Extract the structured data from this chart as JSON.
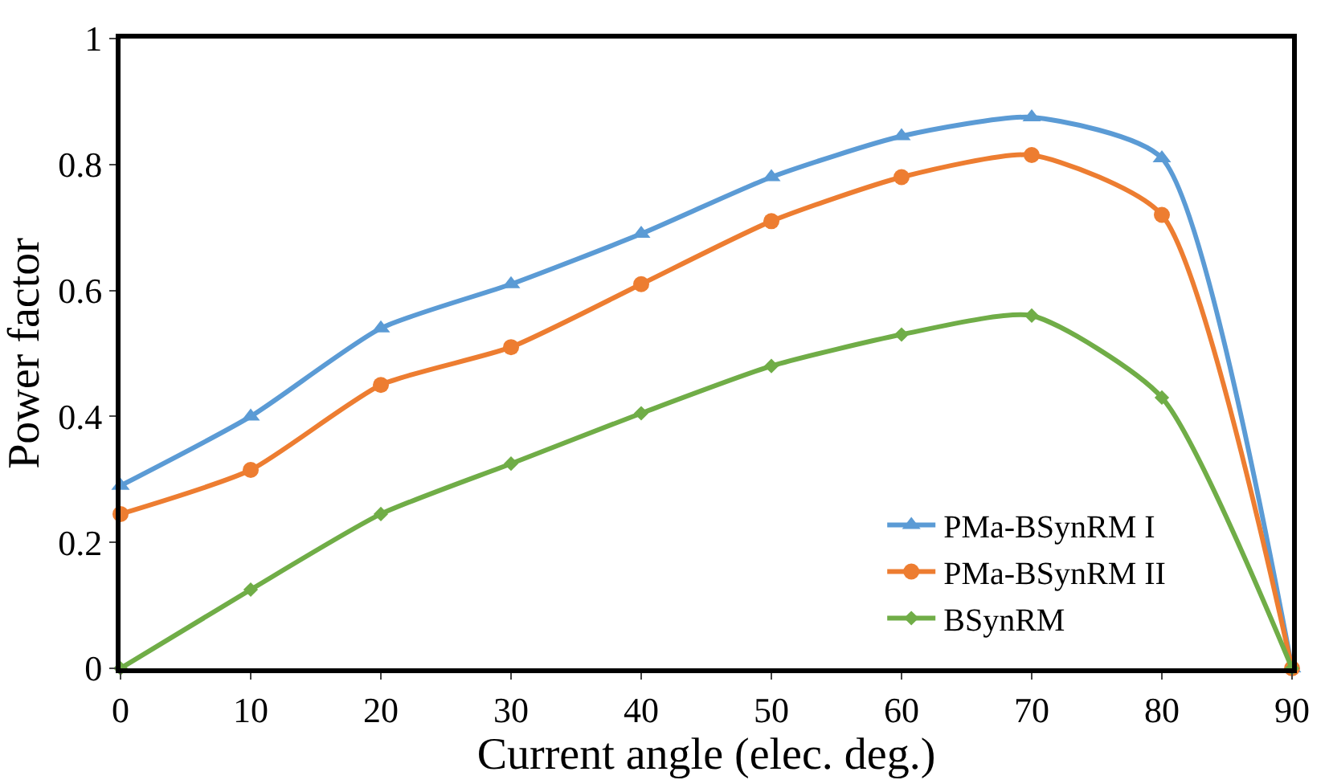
{
  "chart_data": {
    "type": "line",
    "xlabel": "Current angle (elec. deg.)",
    "ylabel": "Power factor",
    "x": [
      0,
      10,
      20,
      30,
      40,
      50,
      60,
      70,
      80,
      90
    ],
    "series": [
      {
        "name": "PMa-BSynRM I",
        "color": "#5b9bd5",
        "marker": "triangle",
        "values": [
          0.29,
          0.4,
          0.54,
          0.61,
          0.69,
          0.78,
          0.845,
          0.875,
          0.81,
          0
        ]
      },
      {
        "name": "PMa-BSynRM II",
        "color": "#ed7d31",
        "marker": "circle",
        "values": [
          0.245,
          0.315,
          0.45,
          0.51,
          0.61,
          0.71,
          0.78,
          0.815,
          0.72,
          0
        ]
      },
      {
        "name": "BSynRM",
        "color": "#70ad47",
        "marker": "diamond",
        "values": [
          0,
          0.125,
          0.245,
          0.325,
          0.405,
          0.48,
          0.53,
          0.56,
          0.43,
          0
        ]
      }
    ],
    "xlim": [
      0,
      90
    ],
    "xticks": [
      0,
      10,
      20,
      30,
      40,
      50,
      60,
      70,
      80,
      90
    ],
    "ylim": [
      0,
      1
    ],
    "yticks": [
      0,
      0.2,
      0.4,
      0.6,
      0.8,
      1
    ],
    "legend": "bottom right",
    "line_style": "solid"
  }
}
